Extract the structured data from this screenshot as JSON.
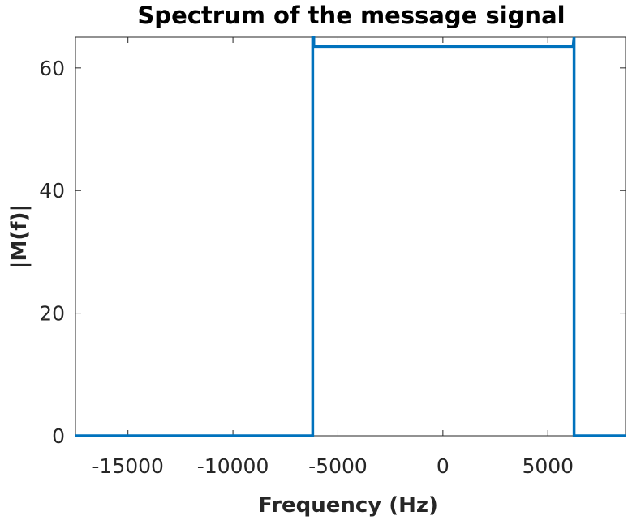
{
  "chart_data": {
    "type": "line",
    "title": "Spectrum of the message signal",
    "xlabel": "Frequency (Hz)",
    "ylabel": "|M(f)|",
    "xlim": [
      -17500,
      8700
    ],
    "ylim": [
      0,
      65
    ],
    "xticks": [
      -15000,
      -10000,
      -5000,
      0,
      5000
    ],
    "xtick_labels": [
      "-15000",
      "-10000",
      "-5000",
      "0",
      "5000"
    ],
    "yticks": [
      0,
      20,
      40,
      60
    ],
    "ytick_labels": [
      "0",
      "20",
      "40",
      "60"
    ],
    "grid": false,
    "line_color": "#0072BD",
    "series": [
      {
        "x": [
          -17500,
          -6200,
          -6200,
          -6150,
          -6150,
          6200,
          6250,
          6250,
          8700
        ],
        "y": [
          0,
          0,
          65,
          65,
          63.5,
          63.5,
          65,
          0,
          0
        ]
      }
    ]
  }
}
